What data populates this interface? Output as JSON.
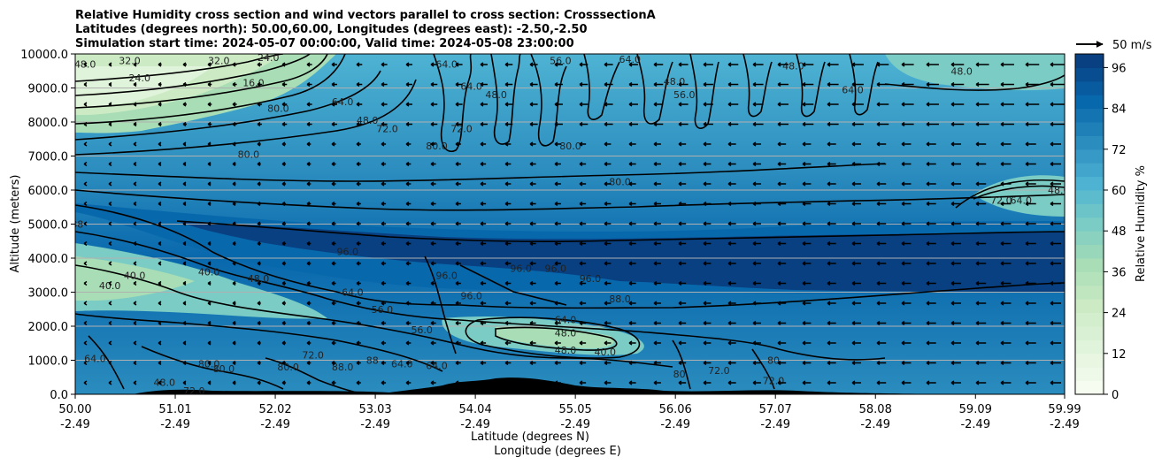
{
  "chart_data": {
    "type": "filled-contour",
    "title_lines": [
      "Relative Humidity cross section and wind vectors parallel to cross section: CrosssectionA",
      "Latitudes (degrees north): 50.00,60.00, Longitudes (degrees east): -2.50,-2.50",
      "Simulation start time: 2024-05-07 00:00:00, Valid time: 2024-05-08 23:00:00"
    ],
    "xlabel_lat": "Latitude (degrees N)",
    "xlabel_lon": "Longitude (degrees E)",
    "ylabel": "Altitude (meters)",
    "xlim": [
      50.0,
      59.99
    ],
    "ylim": [
      0,
      10000
    ],
    "x_ticks": [
      {
        "lat": "50.00",
        "lon": "-2.49",
        "value": 50.0
      },
      {
        "lat": "51.01",
        "lon": "-2.49",
        "value": 51.01
      },
      {
        "lat": "52.02",
        "lon": "-2.49",
        "value": 52.02
      },
      {
        "lat": "53.03",
        "lon": "-2.49",
        "value": 53.03
      },
      {
        "lat": "54.04",
        "lon": "-2.49",
        "value": 54.04
      },
      {
        "lat": "55.05",
        "lon": "-2.49",
        "value": 55.05
      },
      {
        "lat": "56.06",
        "lon": "-2.49",
        "value": 56.06
      },
      {
        "lat": "57.07",
        "lon": "-2.49",
        "value": 57.07
      },
      {
        "lat": "58.08",
        "lon": "-2.49",
        "value": 58.08
      },
      {
        "lat": "59.09",
        "lon": "-2.49",
        "value": 59.09
      },
      {
        "lat": "59.99",
        "lon": "-2.49",
        "value": 59.99
      }
    ],
    "y_ticks": [
      {
        "label": "0.0",
        "value": 0
      },
      {
        "label": "1000.0",
        "value": 1000
      },
      {
        "label": "2000.0",
        "value": 2000
      },
      {
        "label": "3000.0",
        "value": 3000
      },
      {
        "label": "4000.0",
        "value": 4000
      },
      {
        "label": "5000.0",
        "value": 5000
      },
      {
        "label": "6000.0",
        "value": 6000
      },
      {
        "label": "7000.0",
        "value": 7000
      },
      {
        "label": "8000.0",
        "value": 8000
      },
      {
        "label": "9000.0",
        "value": 9000
      },
      {
        "label": "10000.0",
        "value": 10000
      }
    ],
    "grid": "horizontal",
    "colorbar": {
      "label": "Relative Humidity %",
      "range": [
        0,
        100
      ],
      "levels": 25,
      "tick_values": [
        0,
        12,
        24,
        36,
        48,
        60,
        72,
        84,
        96
      ],
      "tick_labels": [
        "0",
        "12",
        "24",
        "36",
        "48",
        "60",
        "72",
        "84",
        "96"
      ],
      "colors": [
        "#f7fcf0",
        "#e0f3db",
        "#ccebc5",
        "#a8ddb5",
        "#7bccc4",
        "#4eb3d3",
        "#2b8cbe",
        "#0868ac",
        "#084081"
      ]
    },
    "quiver_key": {
      "label": "50 m/s",
      "value": 50
    },
    "contour_labels": [
      {
        "text": "48.0",
        "lat": 50.1,
        "alt": 9700
      },
      {
        "text": "32.0",
        "lat": 50.55,
        "alt": 9800
      },
      {
        "text": "24.0",
        "lat": 50.65,
        "alt": 9300
      },
      {
        "text": "32.0",
        "lat": 51.45,
        "alt": 9800
      },
      {
        "text": "24.0",
        "lat": 51.95,
        "alt": 9900
      },
      {
        "text": "16.0",
        "lat": 51.8,
        "alt": 9150
      },
      {
        "text": "80.0",
        "lat": 52.05,
        "alt": 8400
      },
      {
        "text": "64.0",
        "lat": 52.7,
        "alt": 8600
      },
      {
        "text": "48.0",
        "lat": 52.95,
        "alt": 8050
      },
      {
        "text": "72.0",
        "lat": 53.15,
        "alt": 7800
      },
      {
        "text": "80.0",
        "lat": 51.75,
        "alt": 7050
      },
      {
        "text": "64.0",
        "lat": 53.75,
        "alt": 9700
      },
      {
        "text": "64.0",
        "lat": 54.0,
        "alt": 9050
      },
      {
        "text": "80.0",
        "lat": 53.65,
        "alt": 7300
      },
      {
        "text": "72.0",
        "lat": 53.9,
        "alt": 7800
      },
      {
        "text": "48.0",
        "lat": 54.25,
        "alt": 8800
      },
      {
        "text": "56.0",
        "lat": 54.9,
        "alt": 9800
      },
      {
        "text": "64.0",
        "lat": 55.6,
        "alt": 9850
      },
      {
        "text": "48.0",
        "lat": 56.05,
        "alt": 9200
      },
      {
        "text": "56.0",
        "lat": 56.15,
        "alt": 8800
      },
      {
        "text": "80.0",
        "lat": 55.0,
        "alt": 7300
      },
      {
        "text": "80.0",
        "lat": 55.5,
        "alt": 6250
      },
      {
        "text": "48.0",
        "lat": 57.25,
        "alt": 9650
      },
      {
        "text": "64.0",
        "lat": 57.85,
        "alt": 8950
      },
      {
        "text": "48.0",
        "lat": 58.95,
        "alt": 9500
      },
      {
        "text": "72.0",
        "lat": 59.35,
        "alt": 5700
      },
      {
        "text": "64.0",
        "lat": 59.55,
        "alt": 5700
      },
      {
        "text": "48.0",
        "lat": 59.93,
        "alt": 6000
      },
      {
        "text": "88",
        "lat": 50.02,
        "alt": 5000
      },
      {
        "text": "96.0",
        "lat": 52.75,
        "alt": 4200
      },
      {
        "text": "40.0",
        "lat": 51.35,
        "alt": 3600
      },
      {
        "text": "48.0",
        "lat": 51.85,
        "alt": 3400
      },
      {
        "text": "40.0",
        "lat": 50.35,
        "alt": 3200
      },
      {
        "text": "40.0",
        "lat": 50.6,
        "alt": 3500
      },
      {
        "text": "64.0",
        "lat": 52.8,
        "alt": 3000
      },
      {
        "text": "56.0",
        "lat": 53.1,
        "alt": 2500
      },
      {
        "text": "96.0",
        "lat": 53.75,
        "alt": 3500
      },
      {
        "text": "96.0",
        "lat": 54.0,
        "alt": 2900
      },
      {
        "text": "96.0",
        "lat": 54.5,
        "alt": 3700
      },
      {
        "text": "96.0",
        "lat": 54.85,
        "alt": 3700
      },
      {
        "text": "96.0",
        "lat": 55.2,
        "alt": 3400
      },
      {
        "text": "88.0",
        "lat": 55.5,
        "alt": 2800
      },
      {
        "text": "64.0",
        "lat": 54.95,
        "alt": 2200
      },
      {
        "text": "56.0",
        "lat": 53.5,
        "alt": 1900
      },
      {
        "text": "48.0",
        "lat": 54.95,
        "alt": 1800
      },
      {
        "text": "48.0",
        "lat": 54.95,
        "alt": 1300
      },
      {
        "text": "40.0",
        "lat": 55.35,
        "alt": 1250
      },
      {
        "text": "64.0",
        "lat": 50.2,
        "alt": 1050
      },
      {
        "text": "80.0",
        "lat": 51.35,
        "alt": 900
      },
      {
        "text": "80.0",
        "lat": 51.5,
        "alt": 750
      },
      {
        "text": "48.0",
        "lat": 50.9,
        "alt": 350
      },
      {
        "text": "72.0",
        "lat": 51.2,
        "alt": 100
      },
      {
        "text": "80.0",
        "lat": 52.15,
        "alt": 800
      },
      {
        "text": "72.0",
        "lat": 52.4,
        "alt": 1150
      },
      {
        "text": "88.0",
        "lat": 52.7,
        "alt": 800
      },
      {
        "text": "88",
        "lat": 53.0,
        "alt": 1000
      },
      {
        "text": "64.0",
        "lat": 53.3,
        "alt": 900
      },
      {
        "text": "64.0",
        "lat": 53.65,
        "alt": 850
      },
      {
        "text": "72.0",
        "lat": 57.05,
        "alt": 400
      },
      {
        "text": "72.0",
        "lat": 56.5,
        "alt": 700
      },
      {
        "text": "80",
        "lat": 56.1,
        "alt": 600
      },
      {
        "text": "80",
        "lat": 57.05,
        "alt": 1000
      }
    ]
  }
}
